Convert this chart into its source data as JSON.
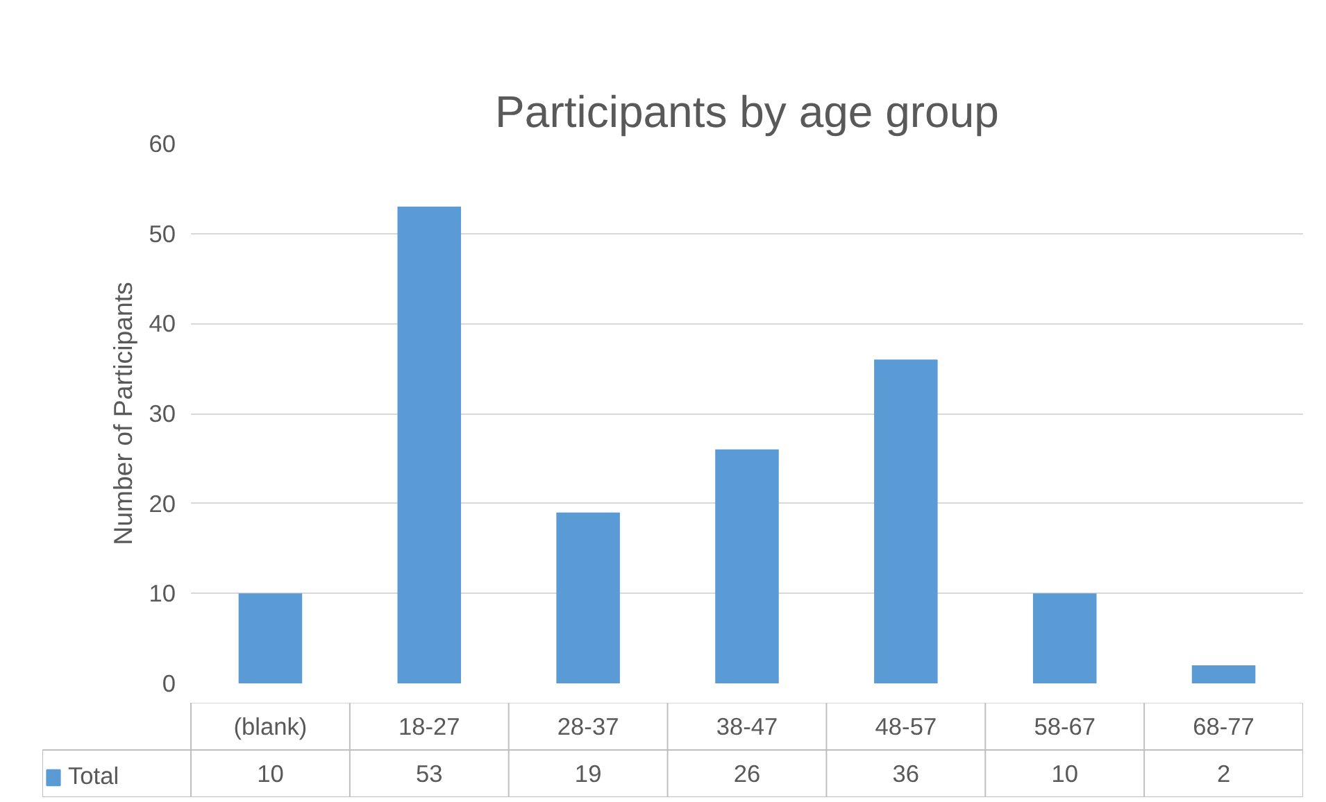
{
  "chart_data": {
    "type": "bar",
    "title": "Participants by age group",
    "ylabel": "Number of Participants",
    "categories": [
      "(blank)",
      "18-27",
      "28-37",
      "38-47",
      "48-57",
      "58-67",
      "68-77"
    ],
    "series": [
      {
        "name": "Total",
        "color": "#5b9bd5",
        "values": [
          10,
          53,
          19,
          26,
          36,
          10,
          2
        ]
      }
    ],
    "ylim": [
      0,
      60
    ],
    "yticks": [
      0,
      10,
      20,
      30,
      40,
      50,
      60
    ],
    "grid": "y",
    "legend": "bottom",
    "data_labels": true
  }
}
